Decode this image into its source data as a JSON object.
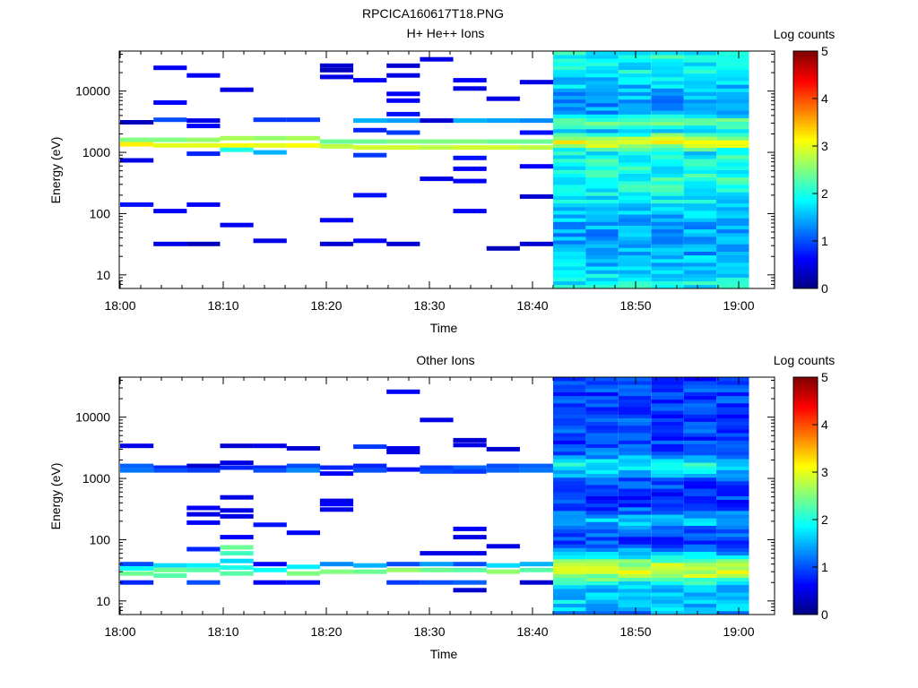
{
  "figure": {
    "title": "RPCICA160617T18.PNG"
  },
  "chart_data": [
    {
      "type": "heatmap",
      "title": "H+ He++ Ions",
      "xlabel": "Time",
      "ylabel": "Energy (eV)",
      "x_ticks": [
        "18:00",
        "18:10",
        "18:20",
        "18:30",
        "18:40",
        "18:50",
        "19:00"
      ],
      "x_range": [
        "18:00",
        "19:01"
      ],
      "y_scale": "log",
      "y_ticks": [
        "10",
        "100",
        "1000",
        "10000"
      ],
      "y_range": [
        6,
        45000
      ],
      "colorbar": {
        "label": "Log counts",
        "ticks": [
          "0",
          "1",
          "2",
          "3",
          "4",
          "5"
        ],
        "range": [
          0,
          5
        ]
      },
      "sparse_end": "18:42",
      "dense_bands": [
        {
          "energy": 1500,
          "level": 3.0
        },
        {
          "energy": 3000,
          "level": 2.3
        },
        {
          "energy": 800,
          "level": 2.0
        },
        {
          "energy": 200,
          "level": 1.5
        },
        {
          "energy": 10,
          "level": 1.2
        }
      ],
      "sparse_cells": [
        {
          "t": 0,
          "e": [
            3100,
            1600,
            1350,
            740,
            140
          ],
          "v": [
            0.3,
            2.5,
            3.2,
            0.5,
            0.7
          ]
        },
        {
          "t": 1,
          "e": [
            24000,
            6500,
            3400,
            1600,
            1300,
            110,
            32
          ],
          "v": [
            0.6,
            0.6,
            1.0,
            2.5,
            3.0,
            0.6,
            0.5
          ]
        },
        {
          "t": 2,
          "e": [
            18000,
            3300,
            2700,
            1600,
            1300,
            950,
            140,
            32
          ],
          "v": [
            0.6,
            0.5,
            0.6,
            2.6,
            3.0,
            0.8,
            0.6,
            0.3
          ]
        },
        {
          "t": 3,
          "e": [
            10500,
            1700,
            1300,
            1100,
            65
          ],
          "v": [
            0.5,
            2.7,
            3.1,
            2.0,
            0.6
          ]
        },
        {
          "t": 4,
          "e": [
            3400,
            1700,
            1300,
            1000,
            36
          ],
          "v": [
            0.9,
            2.6,
            3.0,
            1.5,
            0.5
          ]
        },
        {
          "t": 5,
          "e": [
            3400,
            1700,
            1300
          ],
          "v": [
            0.9,
            2.7,
            3.1
          ]
        },
        {
          "t": 6,
          "e": [
            26000,
            22000,
            17000,
            1500,
            1250,
            78,
            32
          ],
          "v": [
            0.4,
            0.3,
            0.5,
            2.4,
            2.8,
            0.6,
            0.4
          ]
        },
        {
          "t": 7,
          "e": [
            15000,
            3300,
            2300,
            1500,
            1200,
            900,
            200,
            36
          ],
          "v": [
            0.6,
            1.5,
            0.8,
            2.4,
            2.9,
            0.9,
            0.7,
            0.6
          ]
        },
        {
          "t": 8,
          "e": [
            26000,
            18000,
            9000,
            7000,
            4200,
            3300,
            2100,
            1500,
            1200,
            32
          ],
          "v": [
            0.4,
            0.5,
            0.6,
            0.6,
            0.7,
            1.4,
            0.9,
            2.5,
            2.9,
            0.4
          ]
        },
        {
          "t": 9,
          "e": [
            33000,
            3300,
            1500,
            1200,
            370
          ],
          "v": [
            0.5,
            0.4,
            2.5,
            2.8,
            0.5
          ]
        },
        {
          "t": 10,
          "e": [
            15000,
            11000,
            3300,
            1500,
            1200,
            810,
            540,
            340,
            110
          ],
          "v": [
            0.6,
            0.5,
            1.5,
            2.5,
            2.9,
            0.7,
            0.6,
            0.6,
            0.6
          ]
        },
        {
          "t": 11,
          "e": [
            7500,
            3300,
            1500,
            1200,
            27
          ],
          "v": [
            0.5,
            1.4,
            2.4,
            2.9,
            0.3
          ]
        },
        {
          "t": 12,
          "e": [
            14000,
            3300,
            2100,
            1500,
            1200,
            590,
            190,
            32
          ],
          "v": [
            0.5,
            1.3,
            0.7,
            2.4,
            2.8,
            0.6,
            0.4,
            0.4
          ]
        }
      ]
    },
    {
      "type": "heatmap",
      "title": "Other Ions",
      "xlabel": "Time",
      "ylabel": "Energy (eV)",
      "x_ticks": [
        "18:00",
        "18:10",
        "18:20",
        "18:30",
        "18:40",
        "18:50",
        "19:00"
      ],
      "x_range": [
        "18:00",
        "19:01"
      ],
      "y_scale": "log",
      "y_ticks": [
        "10",
        "100",
        "1000",
        "10000"
      ],
      "y_range": [
        6,
        45000
      ],
      "colorbar": {
        "label": "Log counts",
        "ticks": [
          "0",
          "1",
          "2",
          "3",
          "4",
          "5"
        ],
        "range": [
          0,
          5
        ]
      },
      "sparse_end": "18:42",
      "dense_bands": [
        {
          "energy": 32,
          "level": 2.9
        },
        {
          "energy": 1600,
          "level": 1.9
        },
        {
          "energy": 200,
          "level": 1.5
        },
        {
          "energy": 10,
          "level": 1.7
        },
        {
          "energy": 8000,
          "level": 1.0
        }
      ],
      "sparse_cells": [
        {
          "t": 0,
          "e": [
            3400,
            1600,
            1350,
            40,
            34,
            28,
            20
          ],
          "v": [
            0.5,
            1.1,
            1.2,
            1.0,
            1.9,
            2.4,
            0.8
          ]
        },
        {
          "t": 1,
          "e": [
            1500,
            1350,
            38,
            32,
            26
          ],
          "v": [
            0.8,
            1.0,
            1.7,
            2.4,
            2.3
          ]
        },
        {
          "t": 2,
          "e": [
            1600,
            1350,
            330,
            260,
            190,
            70,
            38,
            32,
            20
          ],
          "v": [
            0.4,
            0.9,
            0.6,
            0.5,
            0.6,
            0.8,
            1.8,
            2.3,
            1.0
          ]
        },
        {
          "t": 3,
          "e": [
            3400,
            1800,
            1500,
            490,
            300,
            240,
            110,
            75,
            60,
            45,
            35,
            28
          ],
          "v": [
            0.4,
            0.5,
            0.8,
            0.5,
            0.5,
            0.5,
            0.6,
            2.4,
            2.2,
            1.7,
            2.0,
            2.3
          ]
        },
        {
          "t": 4,
          "e": [
            3400,
            1500,
            1350,
            175,
            40,
            32,
            20
          ],
          "v": [
            0.5,
            0.8,
            1.0,
            0.7,
            0.6,
            1.9,
            0.6
          ]
        },
        {
          "t": 5,
          "e": [
            3100,
            1600,
            1350,
            130,
            36,
            28,
            20
          ],
          "v": [
            0.4,
            1.0,
            1.3,
            0.6,
            1.8,
            2.5,
            0.7
          ]
        },
        {
          "t": 6,
          "e": [
            1500,
            1200,
            430,
            380,
            310,
            40,
            30
          ],
          "v": [
            0.8,
            0.6,
            0.5,
            0.6,
            0.5,
            1.3,
            2.5
          ]
        },
        {
          "t": 7,
          "e": [
            3300,
            1600,
            1350,
            38,
            30
          ],
          "v": [
            0.9,
            0.8,
            1.0,
            1.5,
            2.4
          ]
        },
        {
          "t": 8,
          "e": [
            26000,
            3100,
            2700,
            1400,
            40,
            32,
            20
          ],
          "v": [
            0.6,
            0.5,
            0.5,
            0.7,
            1.0,
            2.6,
            0.9
          ]
        },
        {
          "t": 9,
          "e": [
            9000,
            1500,
            1300,
            60,
            40,
            32,
            20
          ],
          "v": [
            0.5,
            0.9,
            1.0,
            0.5,
            1.4,
            2.4,
            1.0
          ]
        },
        {
          "t": 10,
          "e": [
            4200,
            3500,
            1500,
            1300,
            150,
            110,
            60,
            40,
            32,
            20,
            15
          ],
          "v": [
            0.4,
            0.5,
            1.1,
            0.9,
            0.6,
            0.5,
            0.5,
            1.0,
            2.3,
            1.1,
            0.4
          ]
        },
        {
          "t": 11,
          "e": [
            3000,
            1600,
            1350,
            78,
            38,
            30
          ],
          "v": [
            0.4,
            1.0,
            1.1,
            0.5,
            1.7,
            2.6
          ]
        },
        {
          "t": 12,
          "e": [
            1600,
            1350,
            40,
            32,
            20
          ],
          "v": [
            1.1,
            1.2,
            1.5,
            2.3,
            0.4
          ]
        }
      ]
    }
  ]
}
